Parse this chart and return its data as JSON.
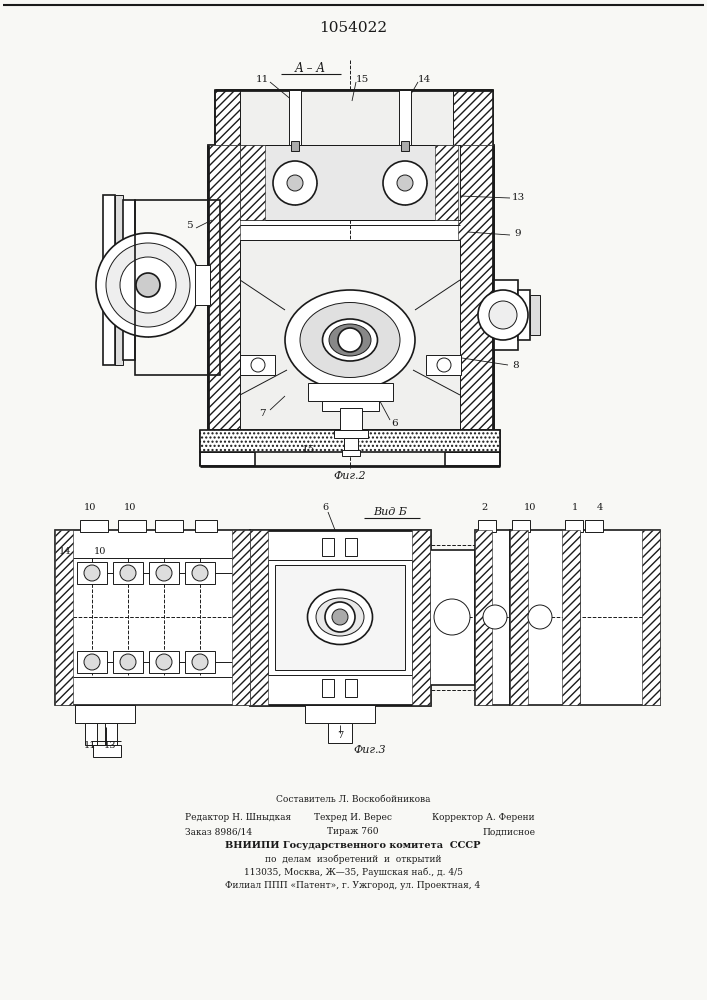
{
  "patent_number": "1054022",
  "bg_color": "#f8f8f5",
  "line_color": "#1a1a1a",
  "fig2_label": "Фиг.2",
  "fig3_label": "Фиг.3",
  "section_label": "А – А",
  "view_label": "Вид Б",
  "footer_composer": "Составитель Л. Воскобойникова",
  "footer_editor": "Редактор Н. Шныдкая",
  "footer_techred": "Техред И. Верес",
  "footer_correktor": "Корректор А. Ферени",
  "footer_zakaz": "Заказ 8986/14",
  "footer_tirazh": "Тираж 760",
  "footer_podpisnoe": "Подписное",
  "footer_vniipи": "ВНИИПИ Государственного комитета  СССР",
  "footer_line2": "по  делам  изобретений  и  открытий",
  "footer_addr1": "113035, Москва, Ж—35, Раушская наб., д. 4/5",
  "footer_addr2": "Филиал ППП «Патент», г. Ужгород, ул. Проектная, 4"
}
